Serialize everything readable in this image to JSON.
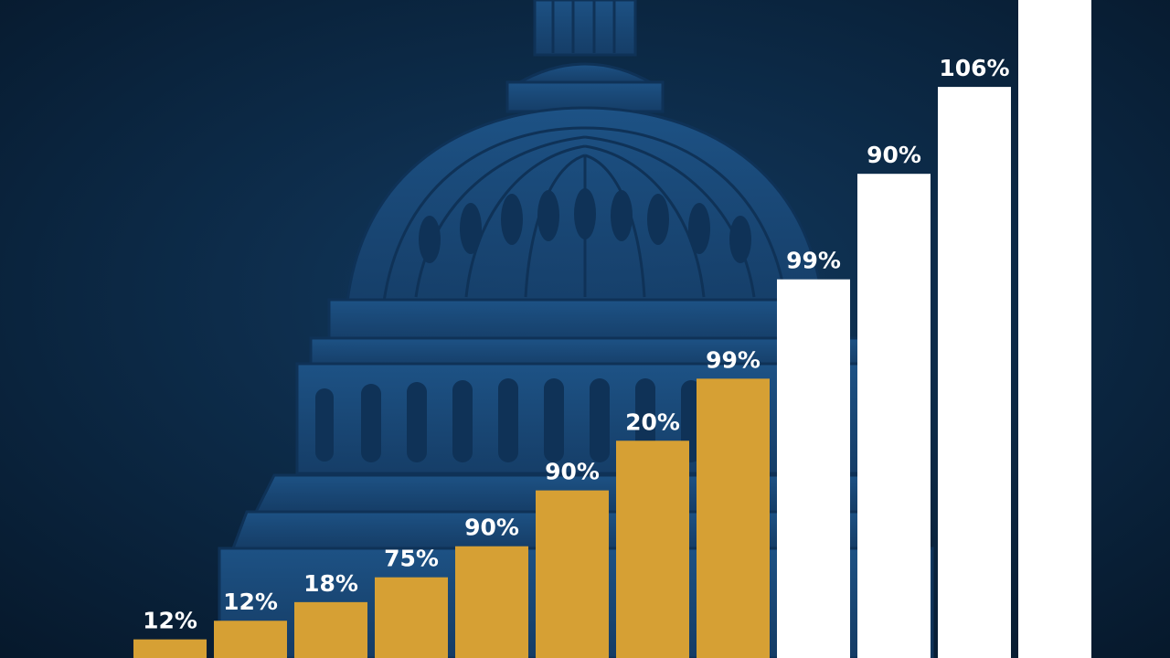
{
  "chart_data": {
    "type": "bar",
    "title": "",
    "xlabel": "",
    "ylabel": "",
    "ylim": [
      0,
      106
    ],
    "grid": false,
    "legend": "none",
    "categories": [
      "",
      "",
      "",
      "",
      "",
      "",
      "",
      "",
      "",
      "",
      "",
      ""
    ],
    "values": [
      3,
      6,
      9,
      13,
      18,
      27,
      35,
      45,
      61,
      78,
      92,
      106
    ],
    "labels": [
      "12%",
      "12%",
      "18%",
      "75%",
      "90%",
      "90%",
      "20%",
      "99%",
      "99%",
      "90%",
      "106%",
      ""
    ],
    "colors": [
      "#d6a034",
      "#d6a034",
      "#d6a034",
      "#d6a034",
      "#d6a034",
      "#d6a034",
      "#d6a034",
      "#d6a034",
      "#ffffff",
      "#ffffff",
      "#ffffff",
      "#ffffff"
    ]
  },
  "theme": {
    "background": "#0b2540",
    "dome_color": "#1b4d7e"
  }
}
